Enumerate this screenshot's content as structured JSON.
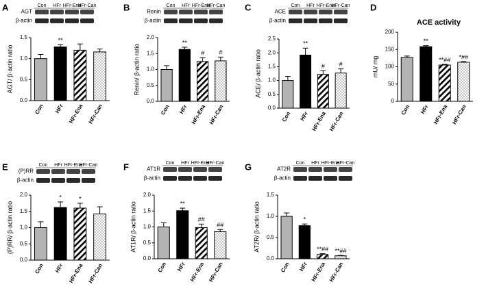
{
  "chart_data": [
    {
      "type": "bar",
      "panel": "A",
      "blot": {
        "lanes": [
          "Con",
          "HFr",
          "HFr-Ena",
          "HFr-Can"
        ],
        "labels": [
          "AGT",
          "β-actin"
        ]
      },
      "ylabel": "AGT/ β-actin ratio",
      "categories": [
        "Con",
        "HFr",
        "HFr-Ena",
        "HFr-Can"
      ],
      "values": [
        1.0,
        1.28,
        1.2,
        1.16
      ],
      "errors": [
        0.1,
        0.05,
        0.15,
        0.07
      ],
      "annotations": [
        null,
        "**",
        null,
        null
      ],
      "ylim": [
        0,
        1.5
      ],
      "yticks": [
        {
          "value": 0,
          "label": "0.0"
        },
        {
          "value": 0.5,
          "label": "0.5"
        },
        {
          "value": 1,
          "label": "1.0"
        },
        {
          "value": 1.5,
          "label": "1.5"
        }
      ],
      "colors": [
        "#b3b3b3",
        "#000000",
        "#ffffff",
        "#ffffff"
      ],
      "patterns": [
        "solid",
        "solid",
        "hatch",
        "dots"
      ]
    },
    {
      "type": "bar",
      "panel": "B",
      "blot": {
        "lanes": [
          "Con",
          "HFr",
          "HFr-Ena",
          "HFr-Can"
        ],
        "labels": [
          "Renin",
          "β-actin"
        ]
      },
      "ylabel": "Renin/ β-actin ratio",
      "categories": [
        "Con",
        "HFr",
        "HFr-Ena",
        "HFr-Can"
      ],
      "values": [
        1.0,
        1.63,
        1.25,
        1.27
      ],
      "errors": [
        0.12,
        0.07,
        0.12,
        0.12
      ],
      "annotations": [
        null,
        "**",
        "#",
        "#"
      ],
      "ylim": [
        0,
        2
      ],
      "yticks": [
        {
          "value": 0,
          "label": "0.0"
        },
        {
          "value": 0.5,
          "label": "0.5"
        },
        {
          "value": 1,
          "label": "1.0"
        },
        {
          "value": 1.5,
          "label": "1.5"
        },
        {
          "value": 2,
          "label": "2.0"
        }
      ],
      "colors": [
        "#b3b3b3",
        "#000000",
        "#ffffff",
        "#ffffff"
      ],
      "patterns": [
        "solid",
        "solid",
        "hatch",
        "dots"
      ]
    },
    {
      "type": "bar",
      "panel": "C",
      "blot": {
        "lanes": [
          "Con",
          "HFr",
          "HFr-Ena",
          "HFr-Can"
        ],
        "labels": [
          "ACE",
          "β-actin"
        ]
      },
      "ylabel": "ACE/ β-actin ratio",
      "categories": [
        "Con",
        "HFr",
        "HFr-Ena",
        "HFr-Can"
      ],
      "values": [
        1.0,
        1.92,
        1.22,
        1.27
      ],
      "errors": [
        0.15,
        0.25,
        0.13,
        0.15
      ],
      "annotations": [
        null,
        "**",
        "#",
        "#"
      ],
      "ylim": [
        0,
        2.5
      ],
      "yticks": [
        {
          "value": 0,
          "label": "0.0"
        },
        {
          "value": 0.5,
          "label": "0.5"
        },
        {
          "value": 1,
          "label": "1.0"
        },
        {
          "value": 1.5,
          "label": "1.5"
        },
        {
          "value": 2,
          "label": "2.0"
        },
        {
          "value": 2.5,
          "label": "2.5"
        }
      ],
      "colors": [
        "#b3b3b3",
        "#000000",
        "#ffffff",
        "#ffffff"
      ],
      "patterns": [
        "solid",
        "solid",
        "hatch",
        "dots"
      ]
    },
    {
      "type": "bar",
      "panel": "D",
      "title": "ACE activity",
      "ylabel": "mU/ mg",
      "categories": [
        "Con",
        "HFr",
        "HFr-Ena",
        "HFr-Can"
      ],
      "values": [
        127,
        158,
        105,
        113
      ],
      "errors": [
        4,
        3,
        2,
        2
      ],
      "annotations": [
        null,
        "**",
        "**##",
        "*##"
      ],
      "ylim": [
        0,
        200
      ],
      "yticks": [
        0,
        50,
        100,
        150,
        200
      ],
      "colors": [
        "#b3b3b3",
        "#000000",
        "#ffffff",
        "#ffffff"
      ],
      "patterns": [
        "solid",
        "solid",
        "hatch",
        "dots"
      ]
    },
    {
      "type": "bar",
      "panel": "E",
      "blot": {
        "lanes": [
          "Con",
          "HFr",
          "HFr-Ena",
          "HFr-Can"
        ],
        "labels": [
          "(P)RR",
          "β-actin"
        ]
      },
      "ylabel": "(P)RR/ β-actin ratio",
      "categories": [
        "Con",
        "HFr",
        "HFr-Ena",
        "HFr-Can"
      ],
      "values": [
        1.0,
        1.62,
        1.6,
        1.42
      ],
      "errors": [
        0.18,
        0.17,
        0.15,
        0.22
      ],
      "annotations": [
        null,
        "*",
        "*",
        null
      ],
      "ylim": [
        0,
        2
      ],
      "yticks": [
        {
          "value": 0,
          "label": "0.0"
        },
        {
          "value": 0.5,
          "label": "0.5"
        },
        {
          "value": 1,
          "label": "1.0"
        },
        {
          "value": 1.5,
          "label": "1.5"
        },
        {
          "value": 2,
          "label": "2.0"
        }
      ],
      "colors": [
        "#b3b3b3",
        "#000000",
        "#ffffff",
        "#ffffff"
      ],
      "patterns": [
        "solid",
        "solid",
        "hatch",
        "dots"
      ]
    },
    {
      "type": "bar",
      "panel": "F",
      "blot": {
        "lanes": [
          "Con",
          "HFr",
          "HFr-Ena",
          "HFr-Can"
        ],
        "labels": [
          "AT1R",
          "β-actin"
        ]
      },
      "ylabel": "AT1R/ β-actin ratio",
      "categories": [
        "Con",
        "HFr",
        "HFr-Ena",
        "HFr-Can"
      ],
      "values": [
        1.0,
        1.51,
        0.98,
        0.85
      ],
      "errors": [
        0.13,
        0.08,
        0.11,
        0.07
      ],
      "annotations": [
        null,
        "**",
        "##",
        "##"
      ],
      "ylim": [
        0,
        2
      ],
      "yticks": [
        {
          "value": 0,
          "label": "0.0"
        },
        {
          "value": 0.5,
          "label": "0.5"
        },
        {
          "value": 1,
          "label": "1.0"
        },
        {
          "value": 1.5,
          "label": "1.5"
        },
        {
          "value": 2,
          "label": "2.0"
        }
      ],
      "colors": [
        "#b3b3b3",
        "#000000",
        "#ffffff",
        "#ffffff"
      ],
      "patterns": [
        "solid",
        "solid",
        "hatch",
        "dots"
      ]
    },
    {
      "type": "bar",
      "panel": "G",
      "blot": {
        "lanes": [
          "Con",
          "HFr",
          "HFr-Ena",
          "HFr-Can"
        ],
        "labels": [
          "AT2R",
          "β-actin"
        ]
      },
      "ylabel": "AT2R/ β-actin ratio",
      "categories": [
        "Con",
        "HFr",
        "HFr-Ena",
        "HFr-Can"
      ],
      "values": [
        1.0,
        0.78,
        0.1,
        0.07
      ],
      "errors": [
        0.08,
        0.04,
        0.02,
        0.01
      ],
      "annotations": [
        null,
        "*",
        "**##",
        "**##"
      ],
      "ylim": [
        0,
        1.5
      ],
      "yticks": [
        {
          "value": 0,
          "label": "0.0"
        },
        {
          "value": 0.5,
          "label": "0.5"
        },
        {
          "value": 1,
          "label": "1.0"
        },
        {
          "value": 1.5,
          "label": "1.5"
        }
      ],
      "colors": [
        "#b3b3b3",
        "#000000",
        "#ffffff",
        "#ffffff"
      ],
      "patterns": [
        "solid",
        "solid",
        "hatch",
        "dots"
      ]
    }
  ]
}
